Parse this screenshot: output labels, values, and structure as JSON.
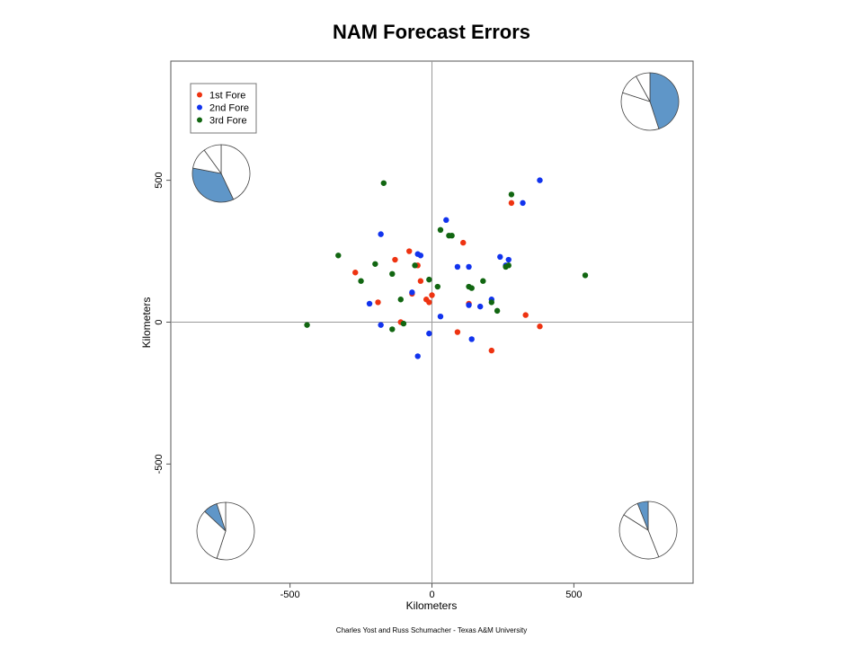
{
  "chart_data": {
    "type": "scatter",
    "title": "NAM Forecast Errors",
    "xlabel": "Kilometers",
    "ylabel": "Kilometers",
    "xlim": [
      -920,
      920
    ],
    "ylim": [
      -920,
      920
    ],
    "xticks": [
      -500,
      0,
      500
    ],
    "yticks": [
      -500,
      0,
      500
    ],
    "credit": "Charles Yost and Russ Schumacher - Texas A&M University",
    "legend_position": "top-left",
    "grid": false,
    "reference_lines": [
      {
        "axis": "x",
        "value": 0
      },
      {
        "axis": "y",
        "value": 0
      }
    ],
    "series": [
      {
        "name": "1st Fore",
        "color": "#ee3311",
        "x": [
          280,
          110,
          -80,
          -130,
          -50,
          -270,
          -40,
          -70,
          -20,
          -10,
          0,
          -190,
          -110,
          130,
          330,
          380,
          90,
          210
        ],
        "y": [
          420,
          280,
          250,
          220,
          200,
          175,
          145,
          100,
          80,
          70,
          95,
          70,
          0,
          65,
          25,
          -15,
          -35,
          -100
        ]
      },
      {
        "name": "2nd Fore",
        "color": "#1133ee",
        "x": [
          380,
          320,
          50,
          -180,
          -50,
          -40,
          240,
          270,
          260,
          90,
          130,
          -70,
          -220,
          210,
          130,
          170,
          30,
          -180,
          -10,
          -50,
          140
        ],
        "y": [
          500,
          420,
          360,
          310,
          240,
          235,
          230,
          220,
          200,
          195,
          195,
          105,
          65,
          80,
          60,
          55,
          20,
          -10,
          -40,
          -120,
          -60
        ]
      },
      {
        "name": "3rd Fore",
        "color": "#116611",
        "x": [
          -170,
          280,
          30,
          60,
          70,
          -330,
          -200,
          -250,
          -140,
          -60,
          540,
          270,
          260,
          180,
          130,
          140,
          20,
          -10,
          -110,
          210,
          230,
          -100,
          -140,
          -440
        ],
        "y": [
          490,
          450,
          325,
          305,
          305,
          235,
          205,
          145,
          170,
          200,
          165,
          200,
          195,
          145,
          125,
          120,
          125,
          150,
          80,
          70,
          40,
          -5,
          -25,
          -10
        ]
      }
    ],
    "inset_pies": [
      {
        "corner": "top-right",
        "slices": [
          {
            "value": 45,
            "filled": true
          },
          {
            "value": 35,
            "filled": false
          },
          {
            "value": 12,
            "filled": false
          },
          {
            "value": 8,
            "filled": false
          }
        ]
      },
      {
        "corner": "top-left",
        "slices": [
          {
            "value": 43,
            "filled": false
          },
          {
            "value": 35,
            "filled": true
          },
          {
            "value": 12,
            "filled": false
          },
          {
            "value": 10,
            "filled": false
          }
        ]
      },
      {
        "corner": "bottom-left",
        "slices": [
          {
            "value": 55,
            "filled": false
          },
          {
            "value": 32,
            "filled": false
          },
          {
            "value": 8,
            "filled": true
          },
          {
            "value": 5,
            "filled": false
          }
        ]
      },
      {
        "corner": "bottom-right",
        "slices": [
          {
            "value": 44,
            "filled": false
          },
          {
            "value": 40,
            "filled": false
          },
          {
            "value": 10,
            "filled": false
          },
          {
            "value": 6,
            "filled": true
          }
        ]
      }
    ],
    "pie_fill_color": "#5f96c8"
  }
}
